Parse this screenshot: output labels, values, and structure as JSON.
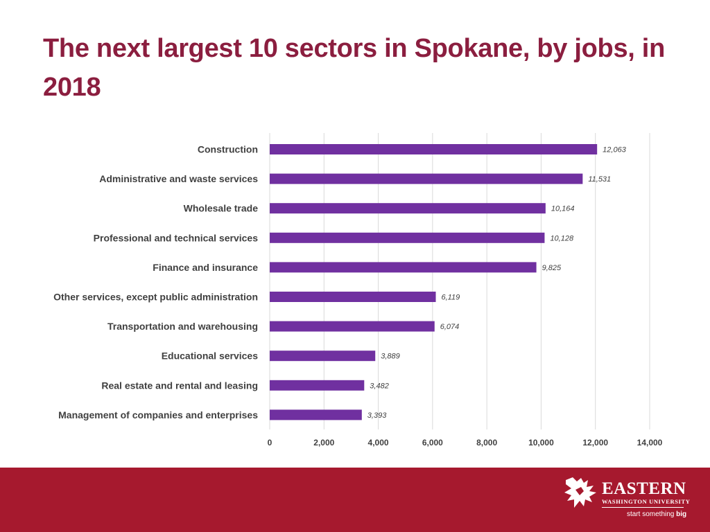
{
  "slide": {
    "title": "The next largest 10 sectors in Spokane, by jobs, in 2018"
  },
  "colors": {
    "title": "#8b1e3f",
    "bar": "#7030a0",
    "footer": "#a6192e",
    "grid": "#d9d9d9"
  },
  "chart_data": {
    "type": "bar",
    "orientation": "horizontal",
    "categories": [
      "Construction",
      "Administrative and waste services",
      "Wholesale trade",
      "Professional and technical services",
      "Finance and insurance",
      "Other services, except public administration",
      "Transportation and warehousing",
      "Educational services",
      "Real estate and rental and leasing",
      "Management of companies and enterprises"
    ],
    "values": [
      12063,
      11531,
      10164,
      10128,
      9825,
      6119,
      6074,
      3889,
      3482,
      3393
    ],
    "value_labels": [
      "12,063",
      "11,531",
      "10,164",
      "10,128",
      "9,825",
      "6,119",
      "6,074",
      "3,889",
      "3,482",
      "3,393"
    ],
    "xlim": [
      0,
      14000
    ],
    "x_ticks": [
      0,
      2000,
      4000,
      6000,
      8000,
      10000,
      12000,
      14000
    ],
    "x_tick_labels": [
      "0",
      "2,000",
      "4,000",
      "6,000",
      "8,000",
      "10,000",
      "12,000",
      "14,000"
    ],
    "grid": true,
    "legend": "none"
  },
  "footer": {
    "logo_name": "EASTERN",
    "logo_subname": "WASHINGTON UNIVERSITY",
    "tagline_prefix": "start something ",
    "tagline_emphasis": "big",
    "logo_icon": "eagle-icon"
  }
}
